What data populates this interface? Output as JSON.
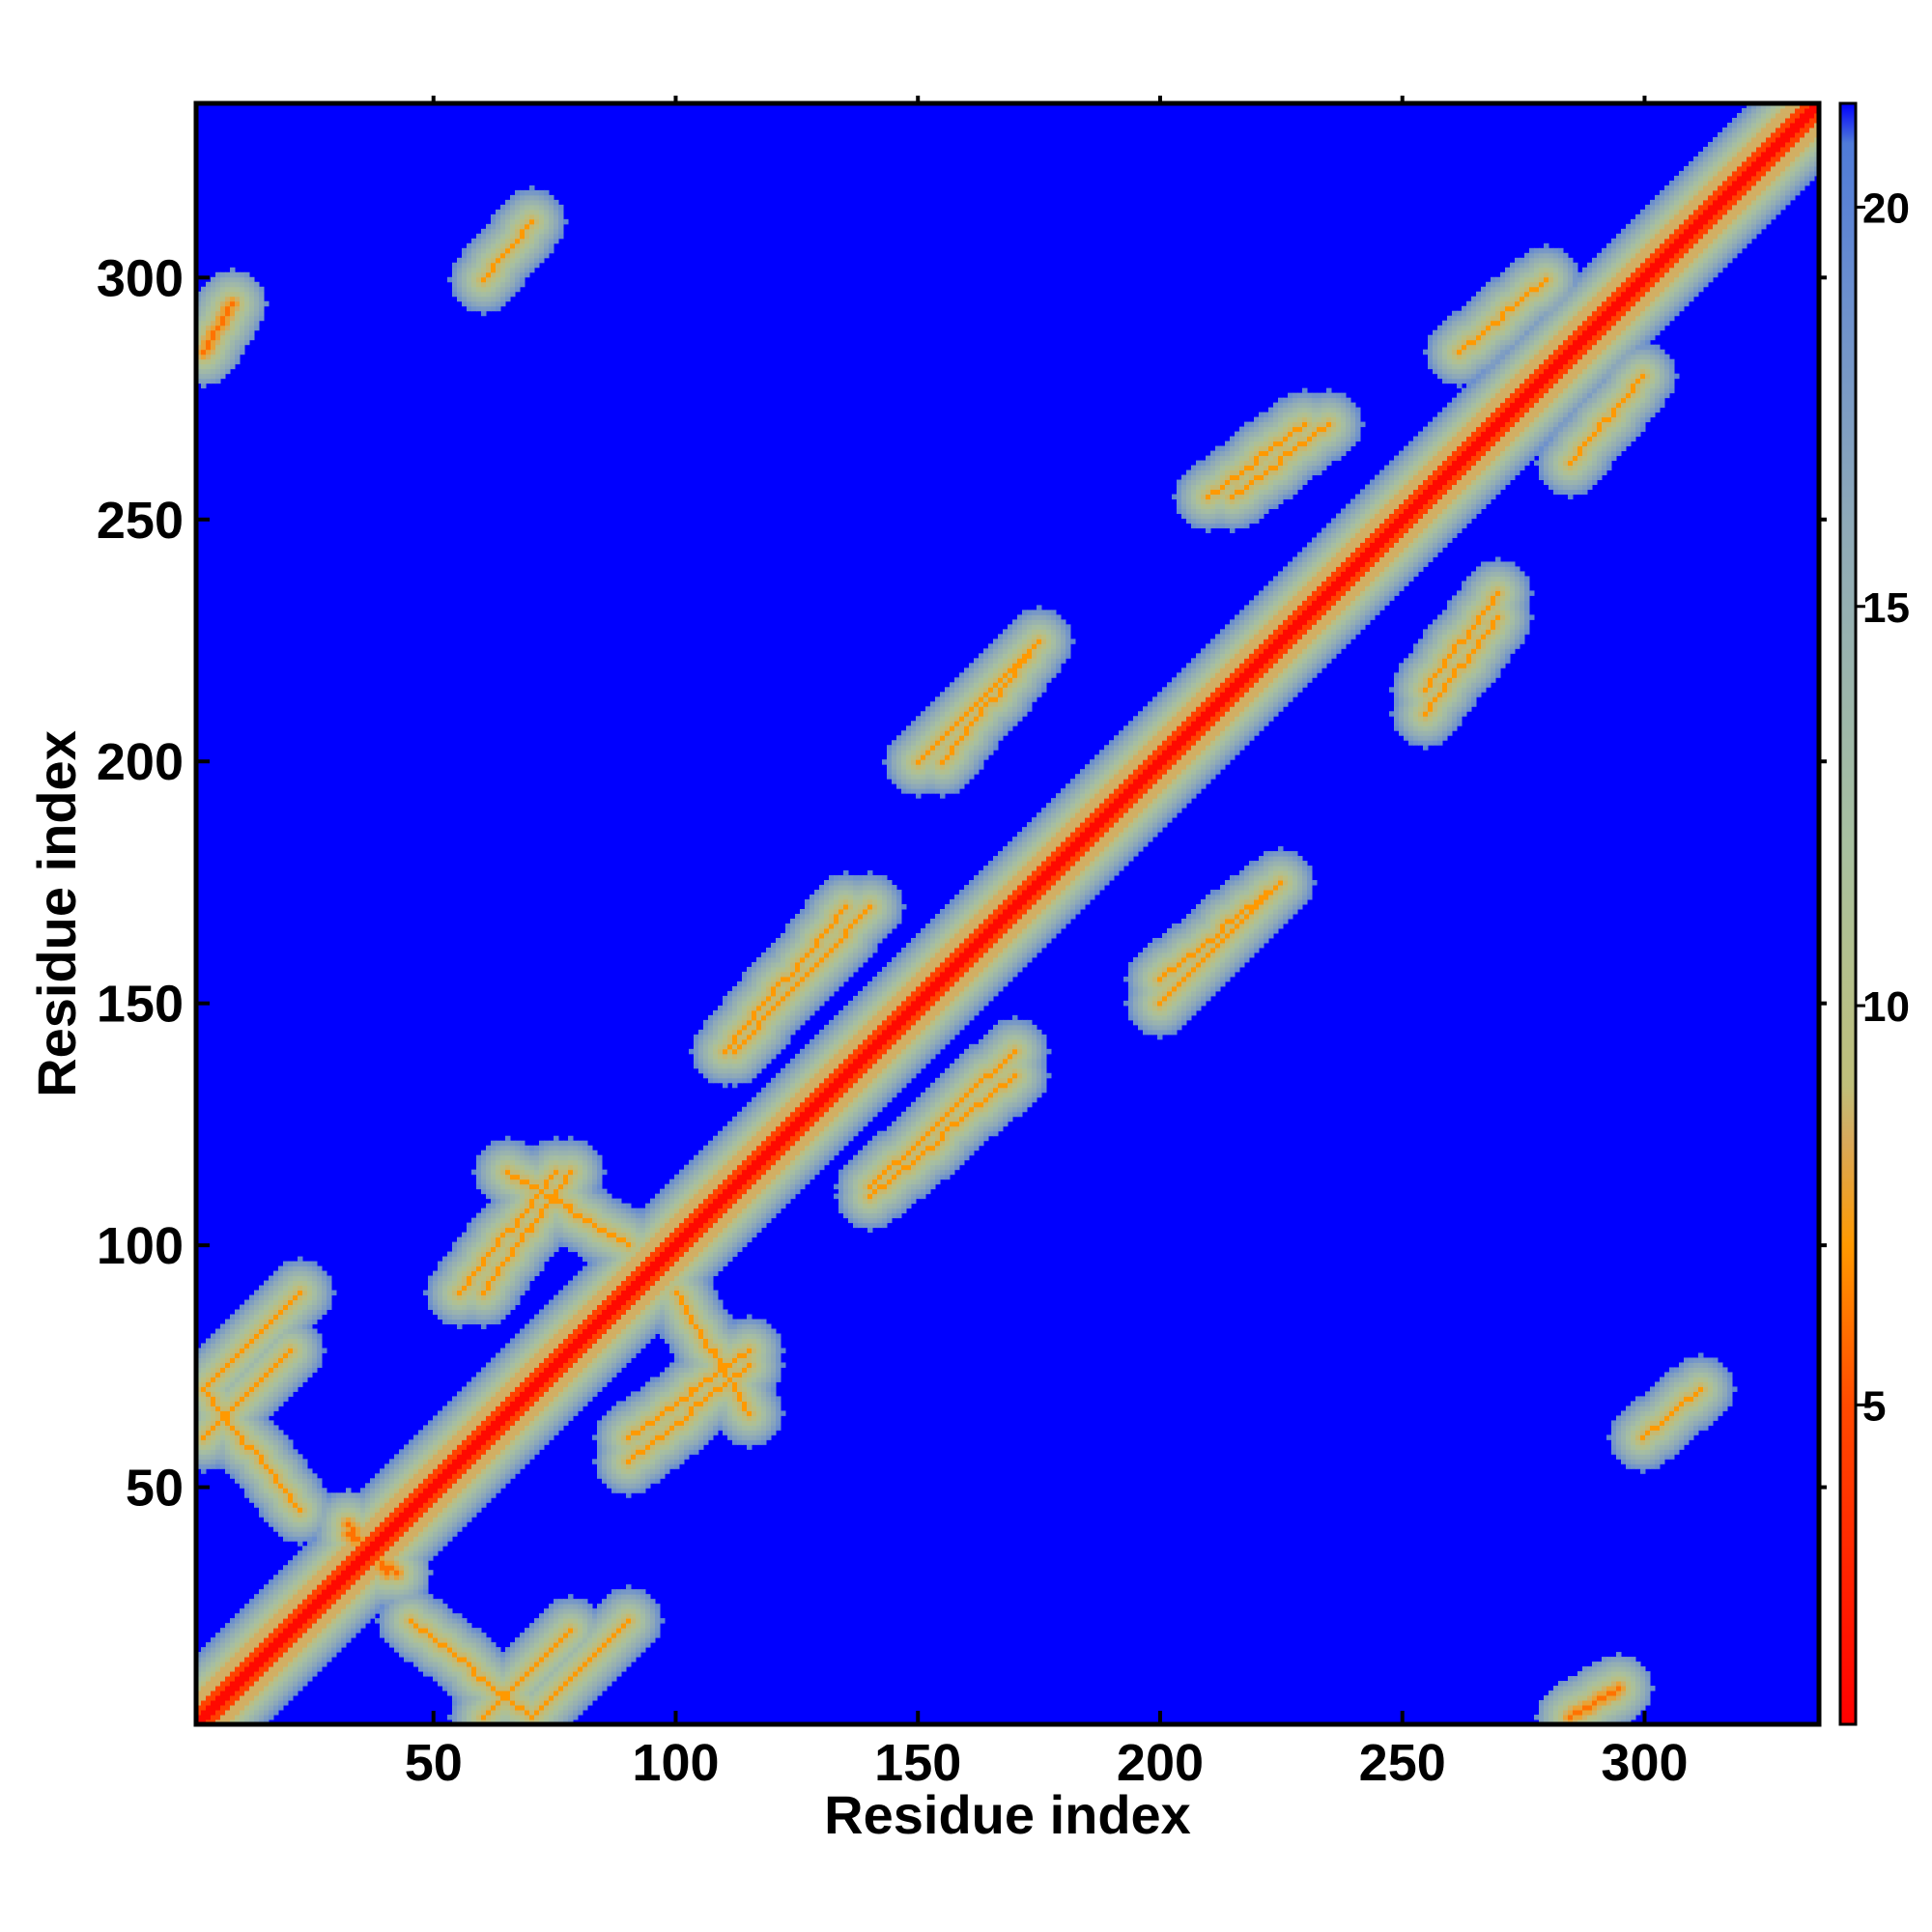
{
  "chart_data": {
    "type": "heatmap",
    "title": "",
    "xlabel": "Residue index",
    "ylabel": "Residue index",
    "n_residues": 336,
    "xlim": [
      1,
      336
    ],
    "ylim": [
      1,
      336
    ],
    "x_ticks": [
      50,
      100,
      150,
      200,
      250,
      300
    ],
    "y_ticks": [
      50,
      100,
      150,
      200,
      250,
      300
    ],
    "colorbar": {
      "range": [
        1,
        21.3
      ],
      "ticks": [
        5,
        10,
        15,
        20
      ],
      "colors": [
        {
          "value": 1,
          "color": "#ff0000"
        },
        {
          "value": 5,
          "color": "#ff4a00"
        },
        {
          "value": 7,
          "color": "#ff9900"
        },
        {
          "value": 8.3,
          "color": "#d9a95a"
        },
        {
          "value": 9,
          "color": "#bfbf7a"
        },
        {
          "value": 12,
          "color": "#a8c0a0"
        },
        {
          "value": 16,
          "color": "#8faab8"
        },
        {
          "value": 19,
          "color": "#6a8ecf"
        },
        {
          "value": 20.8,
          "color": "#4f7bd8"
        },
        {
          "value": 21.3,
          "color": "#0000ff"
        }
      ]
    },
    "background_color": "#0000ff",
    "contact_regions": [
      {
        "x1": 32,
        "y1": 42,
        "x2": 40,
        "y2": 32,
        "min_value": 6
      },
      {
        "x1": 45,
        "y1": 22,
        "x2": 70,
        "y2": 2,
        "min_value": 7
      },
      {
        "x1": 70,
        "y1": 2,
        "x2": 90,
        "y2": 22,
        "min_value": 7
      },
      {
        "x1": 2,
        "y1": 60,
        "x2": 20,
        "y2": 78,
        "min_value": 7
      },
      {
        "x1": 60,
        "y1": 90,
        "x2": 78,
        "y2": 115,
        "min_value": 7
      },
      {
        "x1": 90,
        "y1": 55,
        "x2": 115,
        "y2": 75,
        "min_value": 7
      },
      {
        "x1": 100,
        "y1": 90,
        "x2": 115,
        "y2": 65,
        "min_value": 7
      },
      {
        "x1": 112,
        "y1": 140,
        "x2": 140,
        "y2": 170,
        "min_value": 7
      },
      {
        "x1": 140,
        "y1": 110,
        "x2": 170,
        "y2": 135,
        "min_value": 7
      },
      {
        "x1": 155,
        "y1": 200,
        "x2": 175,
        "y2": 225,
        "min_value": 7
      },
      {
        "x1": 200,
        "y1": 150,
        "x2": 225,
        "y2": 175,
        "min_value": 7
      },
      {
        "x1": 215,
        "y1": 255,
        "x2": 235,
        "y2": 270,
        "min_value": 7
      },
      {
        "x1": 255,
        "y1": 210,
        "x2": 270,
        "y2": 230,
        "min_value": 7
      },
      {
        "x1": 262,
        "y1": 285,
        "x2": 280,
        "y2": 300,
        "min_value": 7
      },
      {
        "x1": 285,
        "y1": 262,
        "x2": 300,
        "y2": 280,
        "min_value": 7
      },
      {
        "x1": 2,
        "y1": 285,
        "x2": 8,
        "y2": 295,
        "min_value": 6
      },
      {
        "x1": 285,
        "y1": 2,
        "x2": 295,
        "y2": 8,
        "min_value": 6
      },
      {
        "x1": 300,
        "y1": 60,
        "x2": 312,
        "y2": 70,
        "min_value": 7
      },
      {
        "x1": 60,
        "y1": 300,
        "x2": 70,
        "y2": 312,
        "min_value": 7
      }
    ]
  }
}
